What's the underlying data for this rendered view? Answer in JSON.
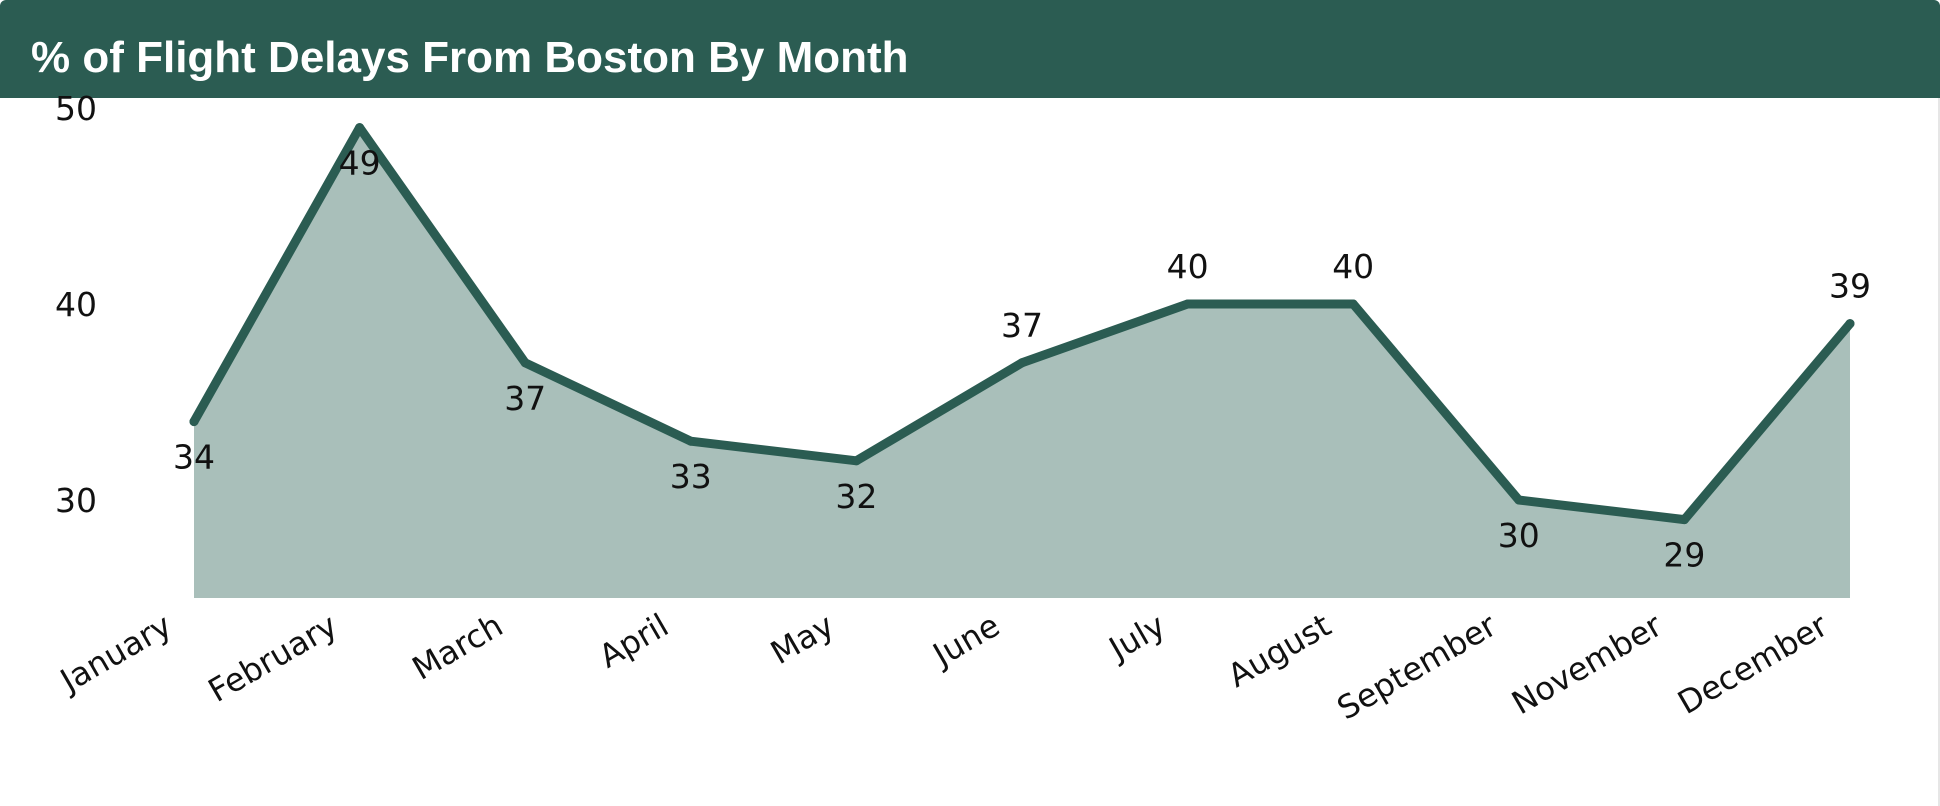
{
  "header": {
    "title": "% of Flight Delays From Boston By Month"
  },
  "colors": {
    "header_bg": "#2b5c52",
    "line": "#2b5c52",
    "area_fill": "#a9bfba"
  },
  "chart_data": {
    "type": "area",
    "title": "% of Flight Delays From Boston By Month",
    "xlabel": "",
    "ylabel": "",
    "categories": [
      "January",
      "February",
      "March",
      "April",
      "May",
      "June",
      "July",
      "August",
      "September",
      "November",
      "December"
    ],
    "series": [
      {
        "values": [
          34,
          49,
          37,
          33,
          32,
          37,
          40,
          40,
          30,
          29,
          39
        ]
      }
    ],
    "data_labels": [
      "34",
      "49",
      "37",
      "33",
      "32",
      "37",
      "40",
      "40",
      "30",
      "29",
      "39"
    ],
    "y_ticks": [
      "30",
      "40",
      "50"
    ],
    "ylim": [
      25,
      50
    ],
    "grid": false,
    "legend": "none"
  }
}
